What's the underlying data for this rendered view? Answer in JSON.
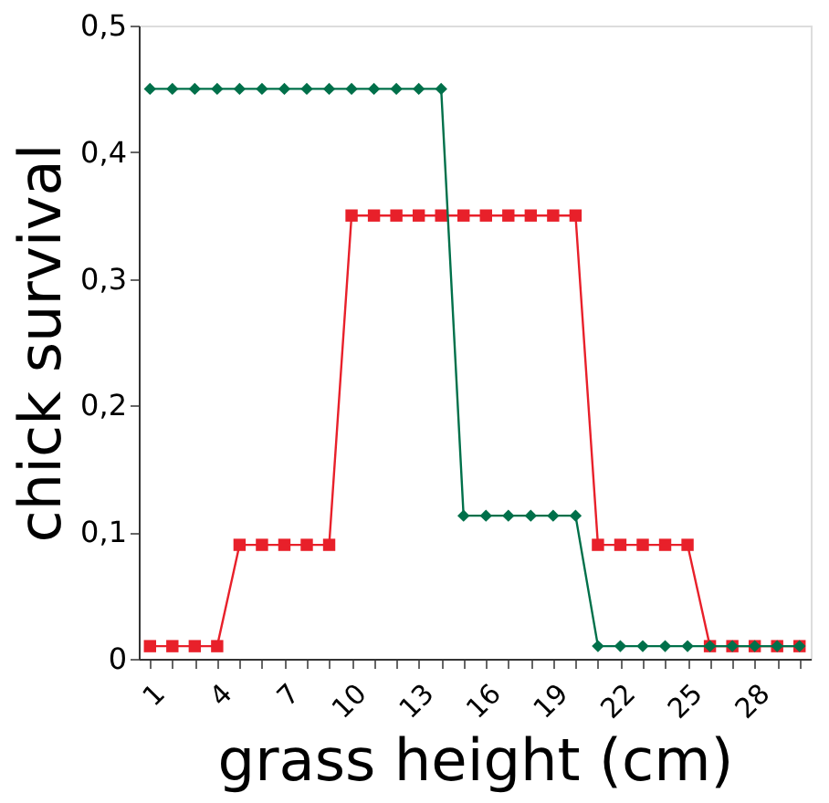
{
  "chart_data": {
    "type": "line",
    "xlabel": "grass height (cm)",
    "ylabel": "chick survival",
    "categories": [
      "1",
      null,
      null,
      "4",
      null,
      null,
      "7",
      null,
      null,
      "10",
      null,
      null,
      "13",
      null,
      null,
      "16",
      null,
      null,
      "19",
      null,
      null,
      "22",
      null,
      null,
      "25",
      null,
      null,
      "28",
      null,
      null
    ],
    "series": [
      {
        "color": "#00704a",
        "marker": "diamond",
        "values": [
          0.45,
          0.45,
          0.45,
          0.45,
          0.45,
          0.45,
          0.45,
          0.45,
          0.45,
          0.45,
          0.45,
          0.45,
          0.45,
          0.45,
          0.113,
          0.113,
          0.113,
          0.113,
          0.113,
          0.113,
          0.01,
          0.01,
          0.01,
          0.01,
          0.01,
          0.01,
          0.01,
          0.01,
          0.01,
          0.01
        ]
      },
      {
        "color": "#e8202a",
        "marker": "square",
        "values": [
          0.01,
          0.01,
          0.01,
          0.01,
          0.09,
          0.09,
          0.09,
          0.09,
          0.09,
          0.35,
          0.35,
          0.35,
          0.35,
          0.35,
          0.35,
          0.35,
          0.35,
          0.35,
          0.35,
          0.35,
          0.09,
          0.09,
          0.09,
          0.09,
          0.09,
          0.01,
          0.01,
          0.01,
          0.01,
          0.01
        ]
      }
    ],
    "ylim": [
      0,
      0.5
    ],
    "yticks": [
      0,
      {
        "value": 0.1,
        "label": "0,1"
      },
      {
        "value": 0.2,
        "label": "0,2"
      },
      {
        "value": 0.3,
        "label": "0,3"
      },
      {
        "value": 0.4,
        "label": "0,4"
      },
      {
        "value": 0.5,
        "label": "0,5"
      }
    ],
    "grid": false,
    "legend": false,
    "line_style": "solid"
  }
}
